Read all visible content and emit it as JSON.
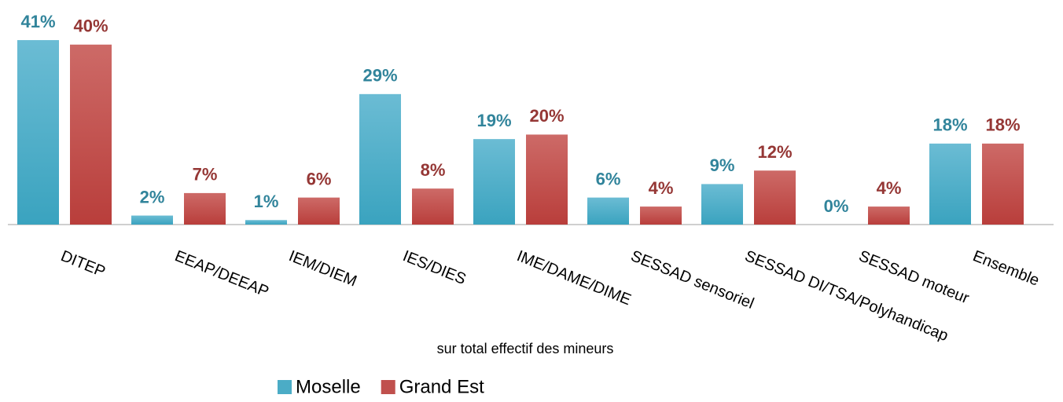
{
  "chart_data": {
    "type": "bar",
    "categories": [
      "DITEP",
      "EEAP/DEEAP",
      "IEM/DIEM",
      "IES/DIES",
      "IME/DAME/DIME",
      "SESSAD sensoriel",
      "SESSAD DI/TSA/Polyhandicap",
      "SESSAD moteur",
      "Ensemble"
    ],
    "series": [
      {
        "name": "Moselle",
        "color": "#4bacc6",
        "label_color": "#31849b",
        "values": [
          41,
          2,
          1,
          29,
          19,
          6,
          9,
          0,
          18
        ],
        "value_labels": [
          "41%",
          "2%",
          "1%",
          "29%",
          "19%",
          "6%",
          "9%",
          "0%",
          "18%"
        ]
      },
      {
        "name": "Grand Est",
        "color": "#c0504d",
        "label_color": "#953735",
        "values": [
          40,
          7,
          6,
          8,
          20,
          4,
          12,
          4,
          18
        ],
        "value_labels": [
          "40%",
          "7%",
          "6%",
          "8%",
          "20%",
          "4%",
          "12%",
          "4%",
          "18%"
        ]
      }
    ],
    "x_label": "sur total effectif des mineurs",
    "legend": "bottom"
  }
}
